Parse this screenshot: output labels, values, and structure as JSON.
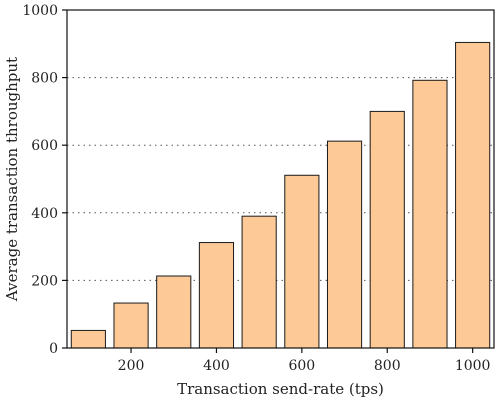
{
  "chart_data": {
    "type": "bar",
    "title": "",
    "xlabel": "Transaction send-rate (tps)",
    "ylabel": "Average transaction throughput",
    "x": [
      100,
      200,
      300,
      400,
      500,
      600,
      700,
      800,
      900,
      1000
    ],
    "values": [
      52,
      133,
      213,
      312,
      390,
      511,
      612,
      700,
      792,
      904
    ],
    "xlim": [
      50,
      1050
    ],
    "ylim": [
      0,
      1000
    ],
    "xticks": [
      200,
      400,
      600,
      800,
      1000
    ],
    "yticks": [
      0,
      200,
      400,
      600,
      800,
      1000
    ],
    "grid": "horizontal dotted",
    "bar_color": "#fdc997",
    "edge_color": "#1a1a1a"
  }
}
